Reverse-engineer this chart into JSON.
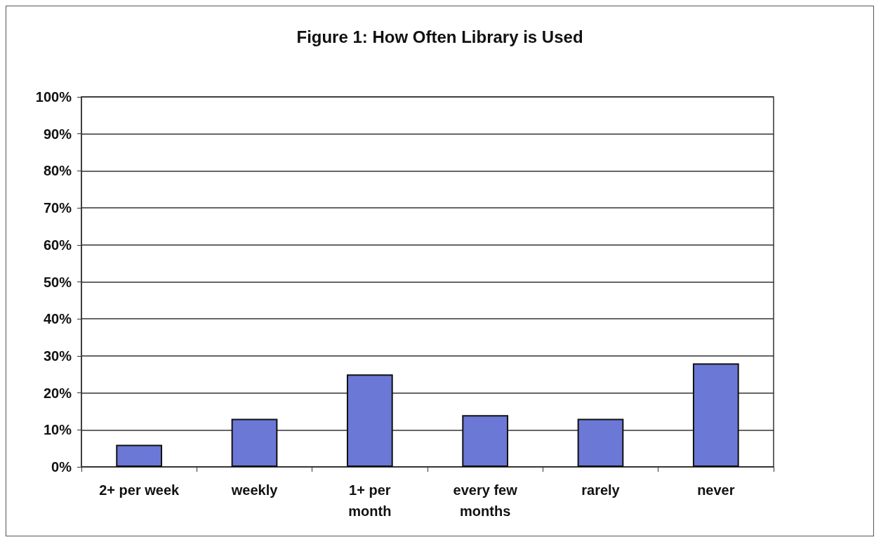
{
  "chart_data": {
    "type": "bar",
    "title": "Figure 1: How Often Library is Used",
    "categories": [
      "2+ per week",
      "weekly",
      "1+ per\nmonth",
      "every few\nmonths",
      "rarely",
      "never"
    ],
    "values": [
      6,
      13,
      25,
      14,
      13,
      28
    ],
    "color": "#6b78d6",
    "ylim": [
      0,
      100
    ],
    "yticks": [
      {
        "value": 0,
        "label": "0%"
      },
      {
        "value": 10,
        "label": "10%"
      },
      {
        "value": 20,
        "label": "20%"
      },
      {
        "value": 30,
        "label": "30%"
      },
      {
        "value": 40,
        "label": "40%"
      },
      {
        "value": 50,
        "label": "50%"
      },
      {
        "value": 60,
        "label": "60%"
      },
      {
        "value": 70,
        "label": "70%"
      },
      {
        "value": 80,
        "label": "80%"
      },
      {
        "value": 90,
        "label": "90%"
      },
      {
        "value": 100,
        "label": "100%"
      }
    ],
    "grid": "y"
  }
}
